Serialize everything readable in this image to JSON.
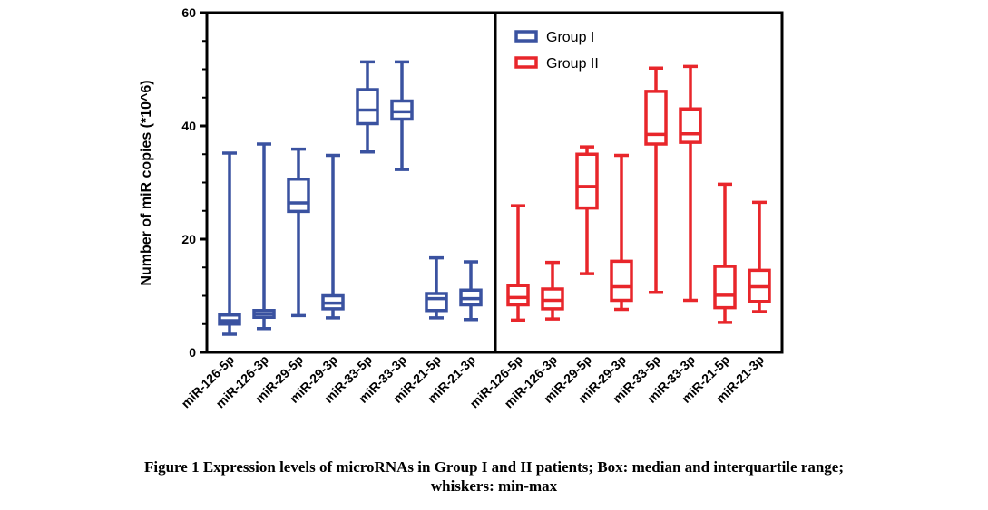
{
  "colors": {
    "group1": "#3a52a0",
    "group2": "#e8262b",
    "axis": "#000000"
  },
  "chart_data": {
    "type": "box",
    "ylabel": "Number of miR copies (*10^6)",
    "ylim": [
      0,
      60
    ],
    "yticks": [
      "0",
      "20",
      "40",
      "60"
    ],
    "categories": [
      "miR-126-5p",
      "miR-126-3p",
      "miR-29-5p",
      "miR-29-3p",
      "miR-33-5p",
      "miR-33-3p",
      "miR-21-5p",
      "miR-21-3p"
    ],
    "legend": {
      "position": "top-left of right panel"
    },
    "series": [
      {
        "name": "Group I",
        "color": "#3a52a0",
        "boxes": [
          {
            "min": 3.2,
            "q1": 5.0,
            "median": 5.6,
            "q3": 6.6,
            "max": 35.2
          },
          {
            "min": 4.2,
            "q1": 6.2,
            "median": 6.8,
            "q3": 7.4,
            "max": 36.8
          },
          {
            "min": 6.5,
            "q1": 24.9,
            "median": 26.4,
            "q3": 30.6,
            "max": 35.9
          },
          {
            "min": 6.1,
            "q1": 7.7,
            "median": 8.7,
            "q3": 10.0,
            "max": 34.8
          },
          {
            "min": 35.4,
            "q1": 40.4,
            "median": 42.8,
            "q3": 46.4,
            "max": 51.3
          },
          {
            "min": 32.3,
            "q1": 41.2,
            "median": 42.5,
            "q3": 44.4,
            "max": 51.3
          },
          {
            "min": 6.1,
            "q1": 7.4,
            "median": 9.5,
            "q3": 10.4,
            "max": 16.7
          },
          {
            "min": 5.8,
            "q1": 8.4,
            "median": 9.5,
            "q3": 11.0,
            "max": 16.0
          }
        ]
      },
      {
        "name": "Group II",
        "color": "#e8262b",
        "boxes": [
          {
            "min": 5.7,
            "q1": 8.4,
            "median": 9.7,
            "q3": 11.8,
            "max": 25.9
          },
          {
            "min": 5.9,
            "q1": 7.7,
            "median": 9.2,
            "q3": 11.2,
            "max": 15.9
          },
          {
            "min": 13.9,
            "q1": 25.5,
            "median": 29.3,
            "q3": 35.0,
            "max": 36.3
          },
          {
            "min": 7.6,
            "q1": 9.2,
            "median": 11.6,
            "q3": 16.1,
            "max": 34.8
          },
          {
            "min": 10.6,
            "q1": 36.8,
            "median": 38.5,
            "q3": 46.1,
            "max": 50.2
          },
          {
            "min": 9.2,
            "q1": 37.1,
            "median": 38.6,
            "q3": 43.0,
            "max": 50.5
          },
          {
            "min": 5.3,
            "q1": 7.9,
            "median": 10.1,
            "q3": 15.2,
            "max": 29.7
          },
          {
            "min": 7.2,
            "q1": 9.0,
            "median": 11.6,
            "q3": 14.5,
            "max": 26.5
          }
        ]
      }
    ]
  },
  "caption": {
    "line1": "Figure 1 Expression levels of microRNAs in Group I and II patients; Box: median and interquartile range;",
    "line2": "whiskers: min-max"
  }
}
